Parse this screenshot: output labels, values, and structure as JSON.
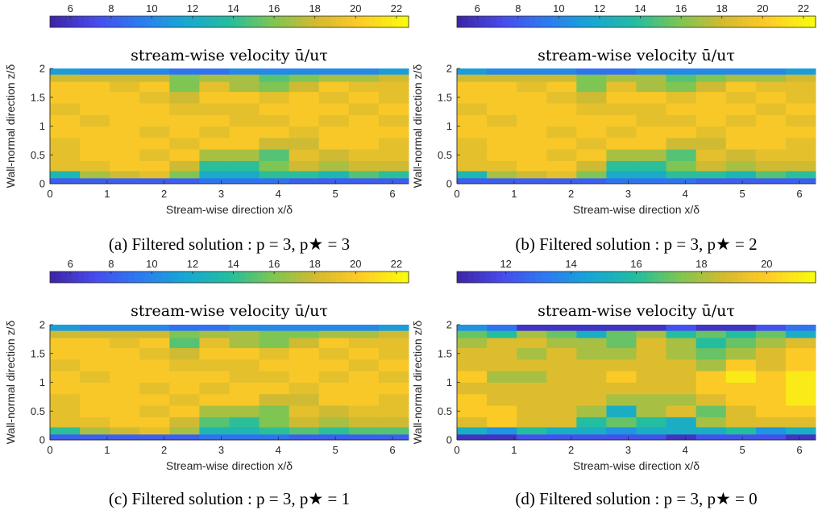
{
  "chart_data": [
    {
      "type": "heatmap",
      "caption": "(a) Filtered solution : p = 3, p★ = 3",
      "title": "stream-wise velocity ū/uτ",
      "xlabel": "Stream-wise direction x/δ",
      "ylabel": "Wall-normal direction z/δ",
      "xlim": [
        0,
        6.283
      ],
      "ylim": [
        0,
        2
      ],
      "xticks": [
        "0",
        "1",
        "2",
        "3",
        "4",
        "5",
        "6"
      ],
      "yticks": [
        "0",
        "0.5",
        "1",
        "1.5",
        "2"
      ],
      "colorbar": {
        "range": [
          5,
          22.6
        ],
        "ticks": [
          "6",
          "8",
          "10",
          "12",
          "14",
          "16",
          "18",
          "20",
          "22"
        ],
        "location": "top",
        "colormap": "parula"
      },
      "x_centers": [
        0.262,
        0.785,
        1.309,
        1.833,
        2.356,
        2.88,
        3.403,
        3.927,
        4.451,
        4.974,
        5.498,
        6.021
      ],
      "z_centers": [
        0.05,
        0.15,
        0.3,
        0.5,
        0.7,
        0.9,
        1.1,
        1.3,
        1.5,
        1.7,
        1.85,
        1.95
      ],
      "values": [
        [
          8,
          8,
          8,
          8,
          8,
          9,
          9,
          9,
          8,
          8,
          8,
          8
        ],
        [
          13,
          17,
          18,
          19,
          16,
          12,
          12,
          14,
          14,
          13,
          15,
          14
        ],
        [
          19,
          19,
          20,
          20,
          18,
          14,
          14,
          16,
          18,
          17,
          18,
          18
        ],
        [
          19,
          20,
          20,
          19,
          20,
          17,
          17,
          15,
          19,
          18,
          19,
          19
        ],
        [
          19,
          20,
          20,
          20,
          19,
          20,
          20,
          18,
          18,
          20,
          20,
          19
        ],
        [
          20,
          20,
          20,
          19,
          20,
          19,
          20,
          20,
          19,
          20,
          20,
          20
        ],
        [
          20,
          19,
          20,
          20,
          20,
          20,
          19,
          19,
          20,
          19,
          20,
          19
        ],
        [
          19,
          20,
          20,
          20,
          19,
          19,
          19,
          20,
          20,
          20,
          19,
          20
        ],
        [
          20,
          20,
          20,
          19,
          18,
          20,
          20,
          19,
          20,
          19,
          20,
          19
        ],
        [
          20,
          20,
          19,
          20,
          16,
          19,
          17,
          16,
          18,
          20,
          19,
          19
        ],
        [
          18,
          18,
          18,
          18,
          16,
          17,
          17,
          15,
          16,
          17,
          17,
          18
        ],
        [
          11,
          10,
          10,
          10,
          9,
          9,
          10,
          10,
          10,
          10,
          10,
          11
        ]
      ]
    },
    {
      "type": "heatmap",
      "caption": "(b) Filtered solution : p = 3, p★ = 2",
      "title": "stream-wise velocity ū/uτ",
      "xlabel": "Stream-wise direction x/δ",
      "ylabel": "Wall-normal direction z/δ",
      "xlim": [
        0,
        6.283
      ],
      "ylim": [
        0,
        2
      ],
      "xticks": [
        "0",
        "1",
        "2",
        "3",
        "4",
        "5",
        "6"
      ],
      "yticks": [
        "0",
        "0.5",
        "1",
        "1.5",
        "2"
      ],
      "colorbar": {
        "range": [
          5,
          22.6
        ],
        "ticks": [
          "6",
          "8",
          "10",
          "12",
          "14",
          "16",
          "18",
          "20",
          "22"
        ],
        "location": "top",
        "colormap": "parula"
      },
      "x_centers": [
        0.262,
        0.785,
        1.309,
        1.833,
        2.356,
        2.88,
        3.403,
        3.927,
        4.451,
        4.974,
        5.498,
        6.021
      ],
      "z_centers": [
        0.05,
        0.15,
        0.3,
        0.5,
        0.7,
        0.9,
        1.1,
        1.3,
        1.5,
        1.7,
        1.85,
        1.95
      ],
      "values": [
        [
          8,
          8,
          8,
          8,
          8,
          9,
          9,
          9,
          8,
          8,
          8,
          8
        ],
        [
          13,
          17,
          18,
          19,
          16,
          12,
          12,
          14,
          14,
          13,
          15,
          14
        ],
        [
          19,
          19,
          20,
          20,
          18,
          14,
          14,
          16,
          18,
          17,
          18,
          18
        ],
        [
          19,
          20,
          20,
          19,
          20,
          17,
          17,
          15,
          19,
          18,
          19,
          19
        ],
        [
          19,
          20,
          20,
          20,
          19,
          20,
          20,
          18,
          18,
          20,
          20,
          19
        ],
        [
          20,
          20,
          20,
          19,
          20,
          19,
          20,
          20,
          19,
          20,
          20,
          20
        ],
        [
          20,
          19,
          20,
          20,
          20,
          20,
          19,
          19,
          20,
          19,
          20,
          19
        ],
        [
          19,
          20,
          20,
          20,
          19,
          19,
          19,
          20,
          20,
          20,
          19,
          20
        ],
        [
          20,
          20,
          20,
          19,
          18,
          20,
          20,
          19,
          20,
          19,
          20,
          19
        ],
        [
          20,
          20,
          19,
          20,
          16,
          19,
          17,
          16,
          18,
          20,
          19,
          19
        ],
        [
          18,
          18,
          18,
          18,
          16,
          17,
          17,
          15,
          16,
          17,
          17,
          18
        ],
        [
          11,
          10,
          10,
          10,
          9,
          9,
          10,
          10,
          10,
          10,
          10,
          11
        ]
      ]
    },
    {
      "type": "heatmap",
      "caption": "(c) Filtered solution : p = 3, p★ = 1",
      "title": "stream-wise velocity ū/uτ",
      "xlabel": "Stream-wise direction x/δ",
      "ylabel": "Wall-normal direction z/δ",
      "xlim": [
        0,
        6.283
      ],
      "ylim": [
        0,
        2
      ],
      "xticks": [
        "0",
        "1",
        "2",
        "3",
        "4",
        "5",
        "6"
      ],
      "yticks": [
        "0",
        "0.5",
        "1",
        "1.5",
        "2"
      ],
      "colorbar": {
        "range": [
          5,
          22.6
        ],
        "ticks": [
          "6",
          "8",
          "10",
          "12",
          "14",
          "16",
          "18",
          "20",
          "22"
        ],
        "location": "top",
        "colormap": "parula"
      },
      "x_centers": [
        0.262,
        0.785,
        1.309,
        1.833,
        2.356,
        2.88,
        3.403,
        3.927,
        4.451,
        4.974,
        5.498,
        6.021
      ],
      "z_centers": [
        0.05,
        0.15,
        0.3,
        0.5,
        0.7,
        0.9,
        1.1,
        1.3,
        1.5,
        1.7,
        1.85,
        1.95
      ],
      "values": [
        [
          8,
          8,
          8,
          8,
          8,
          9,
          9,
          9,
          8,
          8,
          8,
          8
        ],
        [
          14,
          17,
          18,
          19,
          17,
          13,
          13,
          14,
          15,
          14,
          15,
          15
        ],
        [
          19,
          19,
          20,
          20,
          18,
          15,
          14,
          16,
          18,
          17,
          18,
          18
        ],
        [
          19,
          20,
          20,
          19,
          20,
          17,
          17,
          16,
          19,
          18,
          19,
          19
        ],
        [
          19,
          20,
          20,
          20,
          19,
          20,
          20,
          18,
          18,
          20,
          20,
          19
        ],
        [
          20,
          20,
          20,
          19,
          20,
          19,
          20,
          20,
          19,
          20,
          20,
          20
        ],
        [
          20,
          19,
          20,
          20,
          20,
          20,
          19,
          19,
          20,
          19,
          20,
          19
        ],
        [
          19,
          20,
          20,
          20,
          19,
          19,
          19,
          20,
          20,
          20,
          19,
          20
        ],
        [
          20,
          20,
          20,
          19,
          18,
          20,
          20,
          19,
          20,
          19,
          20,
          19
        ],
        [
          20,
          20,
          19,
          20,
          15,
          19,
          17,
          16,
          18,
          20,
          19,
          19
        ],
        [
          18,
          18,
          18,
          18,
          16,
          17,
          17,
          16,
          16,
          17,
          17,
          18
        ],
        [
          11,
          10,
          10,
          10,
          9,
          9,
          10,
          10,
          10,
          10,
          10,
          11
        ]
      ]
    },
    {
      "type": "heatmap",
      "caption": "(d) Filtered solution : p = 3, p★ = 0",
      "title": "stream-wise velocity ū/uτ",
      "xlabel": "Stream-wise direction x/δ",
      "ylabel": "Wall-normal direction z/δ",
      "xlim": [
        0,
        6.283
      ],
      "ylim": [
        0,
        2
      ],
      "xticks": [
        "0",
        "1",
        "2",
        "3",
        "4",
        "5",
        "6"
      ],
      "yticks": [
        "0",
        "0.5",
        "1",
        "1.5",
        "2"
      ],
      "colorbar": {
        "range": [
          10.5,
          21.5
        ],
        "ticks": [
          "12",
          "14",
          "16",
          "18",
          "20"
        ],
        "location": "top",
        "colormap": "parula"
      },
      "x_centers": [
        0.262,
        0.785,
        1.309,
        1.833,
        2.356,
        2.88,
        3.403,
        3.927,
        4.451,
        4.974,
        5.498,
        6.021
      ],
      "z_centers": [
        0.05,
        0.15,
        0.3,
        0.5,
        0.7,
        0.9,
        1.1,
        1.3,
        1.5,
        1.7,
        1.85,
        1.95
      ],
      "values": [
        [
          11,
          11,
          12,
          12,
          12,
          12,
          12,
          11,
          12,
          12,
          12,
          11
        ],
        [
          15,
          14,
          16,
          15,
          15,
          14,
          15,
          15,
          15,
          16,
          14,
          15
        ],
        [
          19,
          20,
          19,
          19,
          16,
          17,
          16,
          15,
          18,
          19,
          19,
          19
        ],
        [
          20,
          20,
          19,
          19,
          18,
          15,
          18,
          19,
          17,
          19,
          20,
          20
        ],
        [
          20,
          19,
          19,
          19,
          19,
          18,
          18,
          18,
          19,
          20,
          20,
          21
        ],
        [
          19,
          19,
          19,
          19,
          19,
          19,
          19,
          19,
          20,
          20,
          20,
          21
        ],
        [
          20,
          18,
          18,
          19,
          19,
          20,
          19,
          19,
          20,
          21,
          20,
          21
        ],
        [
          19,
          19,
          19,
          19,
          19,
          19,
          19,
          19,
          18,
          20,
          19,
          20
        ],
        [
          19,
          19,
          18,
          19,
          18,
          18,
          19,
          18,
          17,
          18,
          19,
          20
        ],
        [
          18,
          19,
          19,
          18,
          18,
          17,
          19,
          18,
          16,
          17,
          18,
          19
        ],
        [
          17,
          16,
          18,
          17,
          15,
          17,
          18,
          16,
          17,
          16,
          17,
          15
        ],
        [
          14,
          13,
          11,
          11,
          11,
          11,
          11,
          12,
          11,
          11,
          12,
          13
        ]
      ]
    }
  ]
}
